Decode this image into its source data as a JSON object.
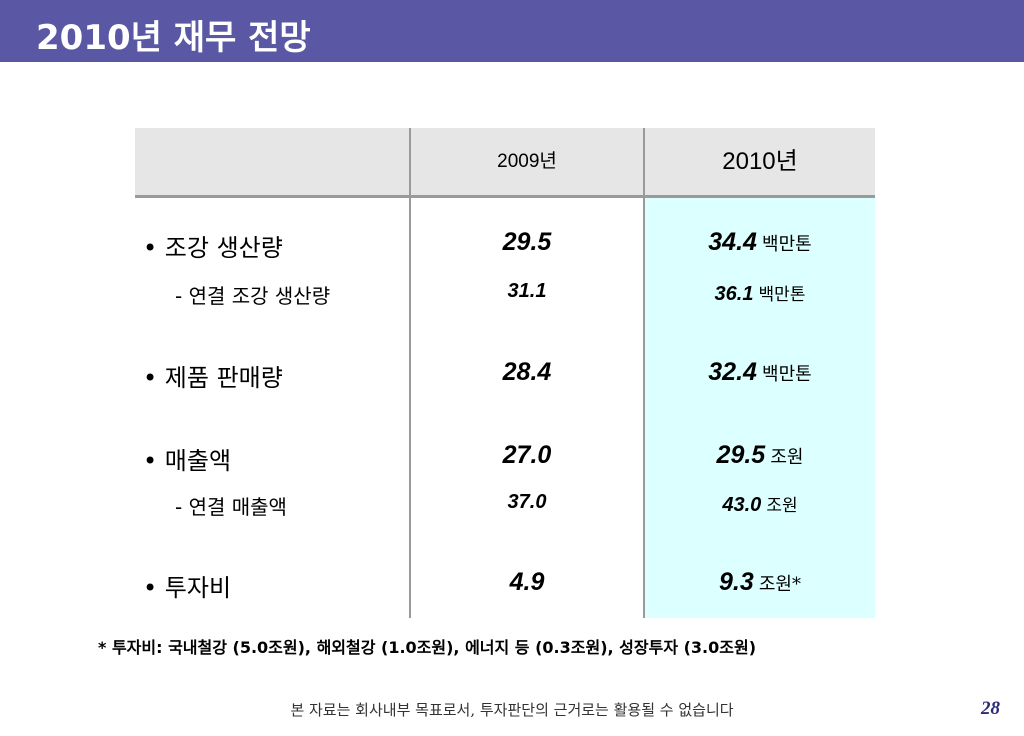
{
  "slide": {
    "title": "2010년 재무 전망",
    "page_number": "28",
    "footnote": "* 투자비: 국내철강 (5.0조원), 해외철강 (1.0조원), 에너지 등 (0.3조원), 성장투자 (3.0조원)",
    "disclaimer": "본 자료는 회사내부 목표로서, 투자판단의 근거로는 활용될 수 없습니다"
  },
  "table": {
    "headers": [
      "",
      "2009년",
      "2010년"
    ],
    "rows": [
      {
        "label": "• 조강 생산량",
        "v2009": "29.5",
        "v2010": "34.4",
        "unit": "백만톤"
      },
      {
        "label": "- 연결 조강 생산량",
        "v2009": "31.1",
        "v2010": "36.1",
        "unit": "백만톤"
      },
      {
        "label": "• 제품 판매량",
        "v2009": "28.4",
        "v2010": "32.4",
        "unit": "백만톤"
      },
      {
        "label": "• 매출액",
        "v2009": "27.0",
        "v2010": "29.5",
        "unit": "조원"
      },
      {
        "label": "- 연결 매출액",
        "v2009": "37.0",
        "v2010": "43.0",
        "unit": "조원"
      },
      {
        "label": "• 투자비",
        "v2009": "4.9",
        "v2010": "9.3",
        "unit": "조원*"
      }
    ]
  }
}
